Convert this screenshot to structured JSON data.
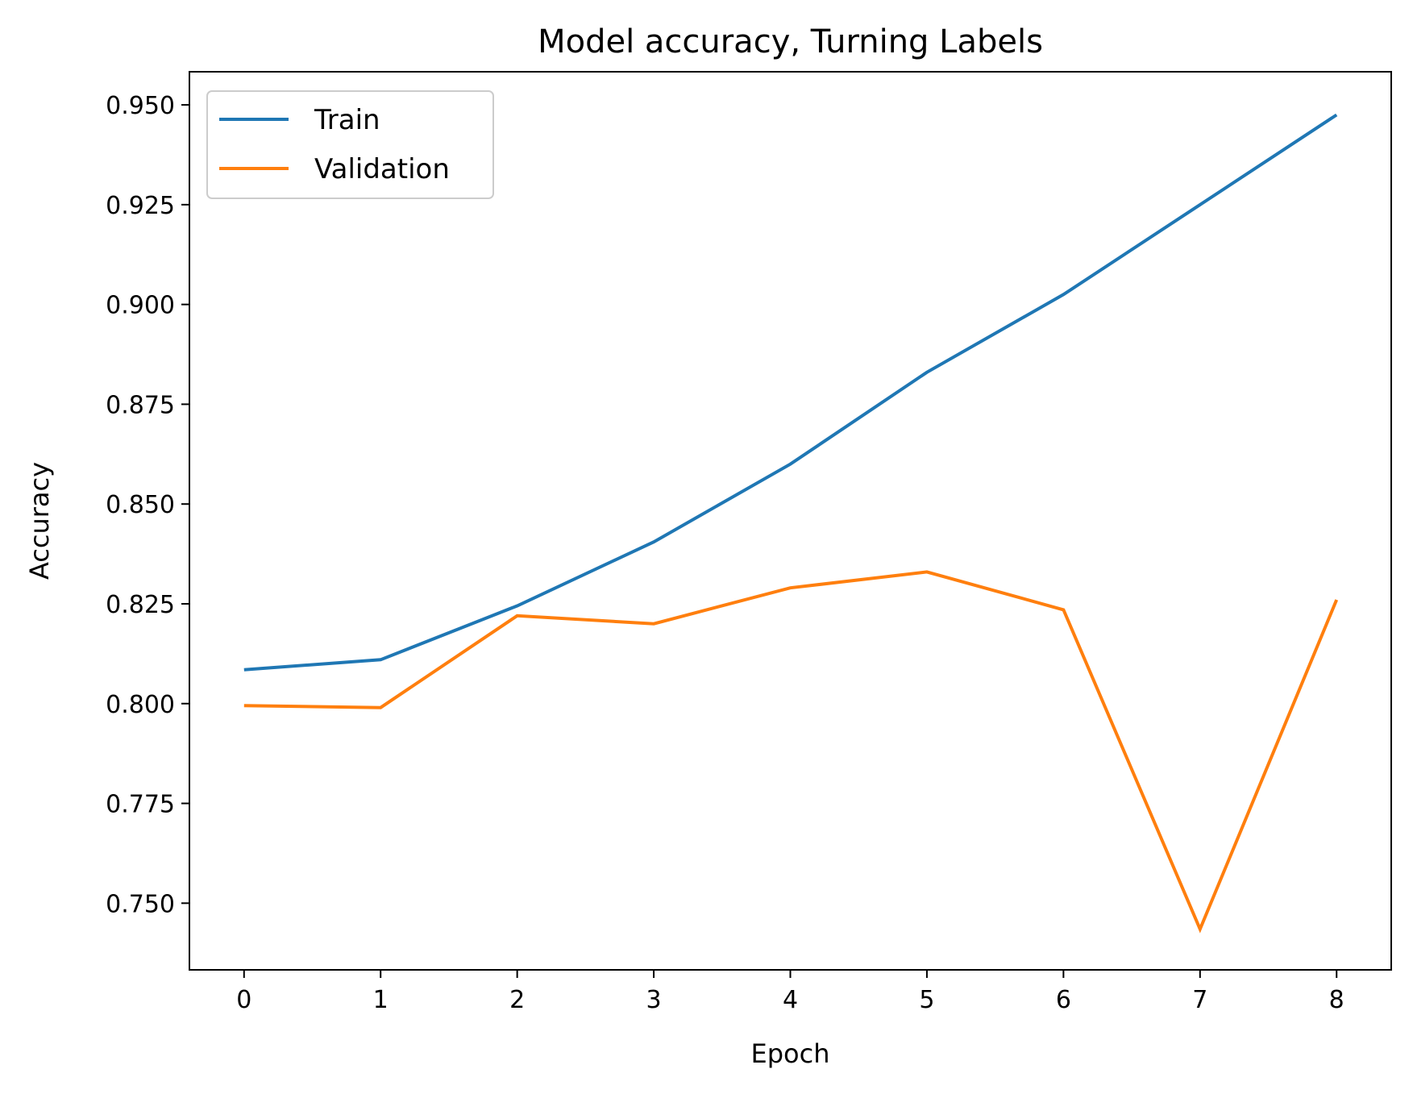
{
  "chart_data": {
    "type": "line",
    "title": "Model accuracy, Turning Labels",
    "xlabel": "Epoch",
    "ylabel": "Accuracy",
    "x": [
      0,
      1,
      2,
      3,
      4,
      5,
      6,
      7,
      8
    ],
    "xlim": [
      -0.4,
      8.4
    ],
    "ylim": [
      0.7333,
      0.9583
    ],
    "xticks": [
      "0",
      "1",
      "2",
      "3",
      "4",
      "5",
      "6",
      "7",
      "8"
    ],
    "yticks": [
      "0.750",
      "0.775",
      "0.800",
      "0.825",
      "0.850",
      "0.875",
      "0.900",
      "0.925",
      "0.950"
    ],
    "ytick_values": [
      0.75,
      0.775,
      0.8,
      0.825,
      0.85,
      0.875,
      0.9,
      0.925,
      0.95
    ],
    "grid": false,
    "legend_position": "top-left",
    "series": [
      {
        "name": "Train",
        "color": "#1f77b4",
        "values": [
          0.8085,
          0.811,
          0.8245,
          0.8405,
          0.86,
          0.883,
          0.9025,
          0.925,
          0.9475
        ]
      },
      {
        "name": "Validation",
        "color": "#ff7f0e",
        "values": [
          0.7995,
          0.799,
          0.822,
          0.82,
          0.829,
          0.833,
          0.8235,
          0.7435,
          0.826
        ]
      }
    ]
  }
}
